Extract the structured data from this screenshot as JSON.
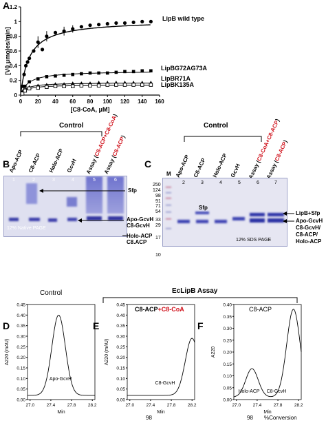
{
  "panels": {
    "a": "A",
    "b": "B",
    "c": "C",
    "d": "D",
    "e": "E",
    "f": "F"
  },
  "chart_data": [
    {
      "type": "scatter",
      "panel": "A",
      "xlabel": "[C8-CoA, μM]",
      "ylabel": "[V0 μmoles/min]",
      "xlim": [
        0,
        160
      ],
      "ylim": [
        0,
        1.2
      ],
      "xticks": [
        "0",
        "20",
        "40",
        "60",
        "80",
        "100",
        "120",
        "140",
        "160"
      ],
      "yticks": [
        "0",
        "0.2",
        "0.4",
        "0.6",
        "0.8",
        "1",
        "1.2"
      ],
      "series": [
        {
          "name": "LipB wild type",
          "marker": "circle-filled",
          "x": [
            2,
            4,
            6,
            8,
            10,
            15,
            20,
            25,
            30,
            40,
            50,
            60,
            70,
            80,
            90,
            100,
            110,
            120,
            130,
            140,
            150
          ],
          "y": [
            0.12,
            0.28,
            0.4,
            0.45,
            0.5,
            0.6,
            0.72,
            0.62,
            0.8,
            0.85,
            0.87,
            0.9,
            0.93,
            0.95,
            0.96,
            0.97,
            0.98,
            0.98,
            0.99,
            1.0,
            1.0
          ]
        },
        {
          "name": "LipBG72AG73A",
          "marker": "square-filled",
          "x": [
            2,
            5,
            10,
            20,
            30,
            40,
            50,
            60,
            70,
            80,
            90,
            100,
            110,
            120,
            130,
            140,
            150
          ],
          "y": [
            0.04,
            0.12,
            0.18,
            0.22,
            0.25,
            0.26,
            0.27,
            0.28,
            0.29,
            0.3,
            0.3,
            0.3,
            0.31,
            0.32,
            0.32,
            0.33,
            0.33
          ]
        },
        {
          "name": "LipBR71A",
          "marker": "triangle-filled",
          "x": [
            2,
            5,
            10,
            20,
            30,
            40,
            50,
            60,
            70,
            80,
            90,
            100,
            110,
            120,
            130,
            140,
            150
          ],
          "y": [
            0.03,
            0.08,
            0.11,
            0.13,
            0.14,
            0.15,
            0.15,
            0.16,
            0.16,
            0.16,
            0.17,
            0.17,
            0.17,
            0.17,
            0.17,
            0.17,
            0.17
          ]
        },
        {
          "name": "LipBK135A",
          "marker": "square-open",
          "x": [
            2,
            5,
            10,
            20,
            30,
            40,
            50,
            60,
            70,
            80,
            90,
            100,
            110,
            120,
            130,
            140,
            150
          ],
          "y": [
            0.02,
            0.06,
            0.09,
            0.1,
            0.11,
            0.12,
            0.12,
            0.12,
            0.13,
            0.13,
            0.13,
            0.14,
            0.14,
            0.14,
            0.14,
            0.14,
            0.14
          ]
        }
      ]
    },
    {
      "type": "line",
      "panel": "D",
      "title": "Control",
      "ylabel": "A220 (mAU)",
      "xlabel": "Min",
      "xticks": [
        "27.0",
        "27.4",
        "27.8",
        "28.2"
      ],
      "yticks": [
        "0.00",
        "0.05",
        "0.10",
        "0.15",
        "0.20",
        "0.25",
        "0.30",
        "0.35",
        "0.40",
        "0.45"
      ],
      "peak_labels": [
        "Apo-GcvH"
      ],
      "peaks": [
        {
          "center": 27.55,
          "height": 0.38,
          "width": 0.13
        }
      ],
      "baseline": 0.02
    },
    {
      "type": "line",
      "panel": "E",
      "ylabel": "A220 (mAU)",
      "xlabel": "Min",
      "xticks": [
        "27.0",
        "27.4",
        "27.8",
        "28.2"
      ],
      "yticks": [
        "0.00",
        "0.05",
        "0.10",
        "0.15",
        "0.20",
        "0.25",
        "0.30",
        "0.35",
        "0.40",
        "0.45"
      ],
      "peak_labels": [
        "C8-GcvH"
      ],
      "peaks": [
        {
          "center": 28.2,
          "height": 0.27,
          "width": 0.13
        }
      ],
      "baseline": 0.02
    },
    {
      "type": "line",
      "panel": "F",
      "ylabel": "A220",
      "xlabel": "Min",
      "xticks": [
        "27.0",
        "27.4",
        "27.8",
        "28.2"
      ],
      "yticks": [
        "0.00",
        "0.05",
        "0.10",
        "0.15",
        "0.20",
        "0.25",
        "0.30",
        "0.35",
        "0.40"
      ],
      "peak_labels": [
        "Holo-ACP",
        "C8-GcvH"
      ],
      "peaks": [
        {
          "center": 27.3,
          "height": 0.12,
          "width": 0.12
        },
        {
          "center": 28.1,
          "height": 0.37,
          "width": 0.13
        }
      ],
      "baseline": 0.01
    }
  ],
  "panel_b": {
    "bracket_label": "Control",
    "lanes": [
      "Apo-ACP",
      "C8-ACP",
      "Holo-ACP",
      "GcvH"
    ],
    "assay1_black": "Assay (",
    "assay1_red": "C8-ACP+C8-CoA",
    "assay1_end": ")",
    "assay2_black": "Assay (",
    "assay2_red": "C8-ACP",
    "assay2_end": ")",
    "lane_numbers": [
      "1",
      "2",
      "3",
      "4",
      "5",
      "6"
    ],
    "labels": {
      "sfp": "Sfp",
      "apo_gcvh": "Apo-GcvH",
      "c8_gcvh": "C8-GcvH",
      "holo_acp": "Holo-ACP",
      "c8_acp": "C8.ACP"
    },
    "gel_caption": "12% Native PAGE"
  },
  "panel_c": {
    "bracket_label": "Control",
    "marker_lane": "M",
    "lanes": [
      "Apo-ACP",
      "C8-ACP",
      "Holo-ACP",
      "GcvH"
    ],
    "assay1_black": "Assay (",
    "assay1_red": "C8-CoA+C8-ACP",
    "assay1_end": ")",
    "assay2_black": "Assay (",
    "assay2_red": "C8-ACP",
    "assay2_end": ")",
    "lane_numbers": [
      "2",
      "3",
      "4",
      "5",
      "6",
      "7"
    ],
    "mw_markers": [
      "250",
      "124",
      "98",
      "91",
      "71",
      "54",
      "33",
      "29",
      "17",
      "10"
    ],
    "sfp_band": "Sfp",
    "labels": {
      "lipb_sfp": "LipB+Sfp",
      "apo_gcvh": "Apo-GcvH",
      "c8_gcvh": "C8-GcvH/",
      "c8_acp": "C8-ACP/",
      "holo_acp": "Holo-ACP"
    },
    "gel_caption": "12% SDS PAGE"
  },
  "panel_ef_bracket": "EcLipB Assay",
  "panel_e_title_black": "C8-ACP",
  "panel_e_title_plus": "+",
  "panel_e_title_red": "C8-CoA",
  "panel_f_title": "C8-ACP",
  "conversions": {
    "e_value": "98",
    "f_value": "98",
    "f_label": "%Conversion"
  }
}
